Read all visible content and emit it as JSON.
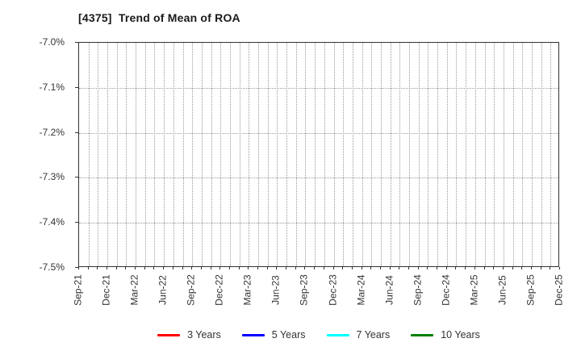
{
  "title": "[4375]  Trend of Mean of ROA",
  "chart_data": {
    "type": "line",
    "title": "[4375]  Trend of Mean of ROA",
    "x_categories": [
      "Sep-21",
      "Dec-21",
      "Mar-22",
      "Jun-22",
      "Sep-22",
      "Dec-22",
      "Mar-23",
      "Jun-23",
      "Sep-23",
      "Dec-23",
      "Mar-24",
      "Jun-24",
      "Sep-24",
      "Dec-24",
      "Mar-25",
      "Jun-25",
      "Sep-25",
      "Dec-25"
    ],
    "y_ticks": [
      "-7.0%",
      "-7.1%",
      "-7.2%",
      "-7.3%",
      "-7.4%",
      "-7.5%"
    ],
    "ylim": [
      -7.5,
      -7.0
    ],
    "y_unit": "%",
    "grid": true,
    "vertical_gridlines": "monthly-dotted",
    "horizontal_gridlines": "every-0.1-dotted",
    "legend_position": "bottom-center",
    "series": [
      {
        "name": "3 Years",
        "color": "#ff0000",
        "values": []
      },
      {
        "name": "5 Years",
        "color": "#0000ff",
        "values": []
      },
      {
        "name": "7 Years",
        "color": "#00ffff",
        "values": []
      },
      {
        "name": "10 Years",
        "color": "#008000",
        "values": []
      }
    ]
  },
  "colors": {
    "background": "#ffffff",
    "spine": "#333333",
    "grid": "#999999",
    "tick_text": "#333333",
    "title_text": "#1a1a1a"
  }
}
